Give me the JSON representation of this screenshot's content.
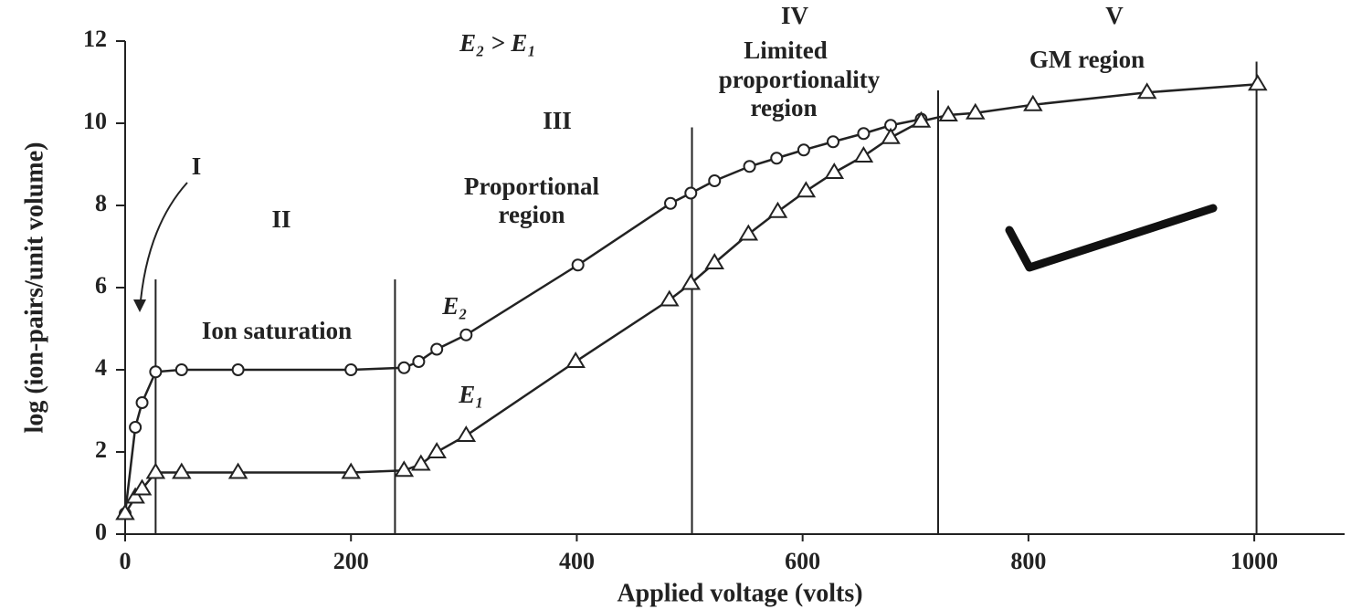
{
  "chart_data": {
    "type": "line",
    "x_label": "Applied voltage (volts)",
    "y_label": "log (ion-pairs/unit volume)",
    "xlim": [
      0,
      1080
    ],
    "ylim": [
      0,
      12
    ],
    "xticks": [
      0,
      200,
      400,
      600,
      800,
      1000
    ],
    "yticks": [
      0,
      2,
      4,
      6,
      8,
      10,
      12
    ],
    "series": [
      {
        "name": "E₂",
        "color": "#222222",
        "marker": "circle",
        "x": [
          0,
          9,
          15,
          27,
          50,
          100,
          200,
          247,
          260,
          276,
          302,
          401,
          483,
          501,
          522,
          553,
          577,
          601,
          627,
          654,
          678,
          705
        ],
        "values": [
          0.5,
          2.6,
          3.2,
          3.95,
          4.0,
          4.0,
          4.0,
          4.05,
          4.2,
          4.5,
          4.85,
          6.55,
          8.05,
          8.3,
          8.6,
          8.95,
          9.15,
          9.35,
          9.55,
          9.75,
          9.95,
          10.1
        ]
      },
      {
        "name": "E₁",
        "color": "#222222",
        "marker": "triangle",
        "x": [
          0,
          9,
          15,
          27,
          50,
          100,
          200,
          247,
          262,
          276,
          302,
          399,
          482,
          501,
          522,
          552,
          578,
          603,
          628,
          654,
          678,
          705,
          729,
          753,
          804,
          905,
          1003
        ],
        "values": [
          0.5,
          0.9,
          1.1,
          1.5,
          1.5,
          1.5,
          1.5,
          1.55,
          1.7,
          2.0,
          2.4,
          4.2,
          5.7,
          6.1,
          6.6,
          7.3,
          7.85,
          8.35,
          8.8,
          9.2,
          9.65,
          10.05,
          10.2,
          10.25,
          10.45,
          10.75,
          10.95
        ]
      }
    ],
    "boundaries": [
      {
        "x": 27,
        "top": 6.2
      },
      {
        "x": 239,
        "top": 6.2
      },
      {
        "x": 502,
        "top": 9.9
      },
      {
        "x": 720,
        "top": 10.8
      },
      {
        "x": 1002,
        "top": 11.5
      }
    ],
    "annotations": {
      "relation": "E₂ > E₁",
      "region_1": "I",
      "region_2": "II",
      "ion_saturation": "Ion saturation",
      "region_3": "III",
      "proportional": [
        "Proportional",
        "region"
      ],
      "region_4": "IV",
      "limited": [
        "Limited",
        "proportionality",
        "region"
      ],
      "region_5": "V",
      "gm": "GM region"
    }
  }
}
